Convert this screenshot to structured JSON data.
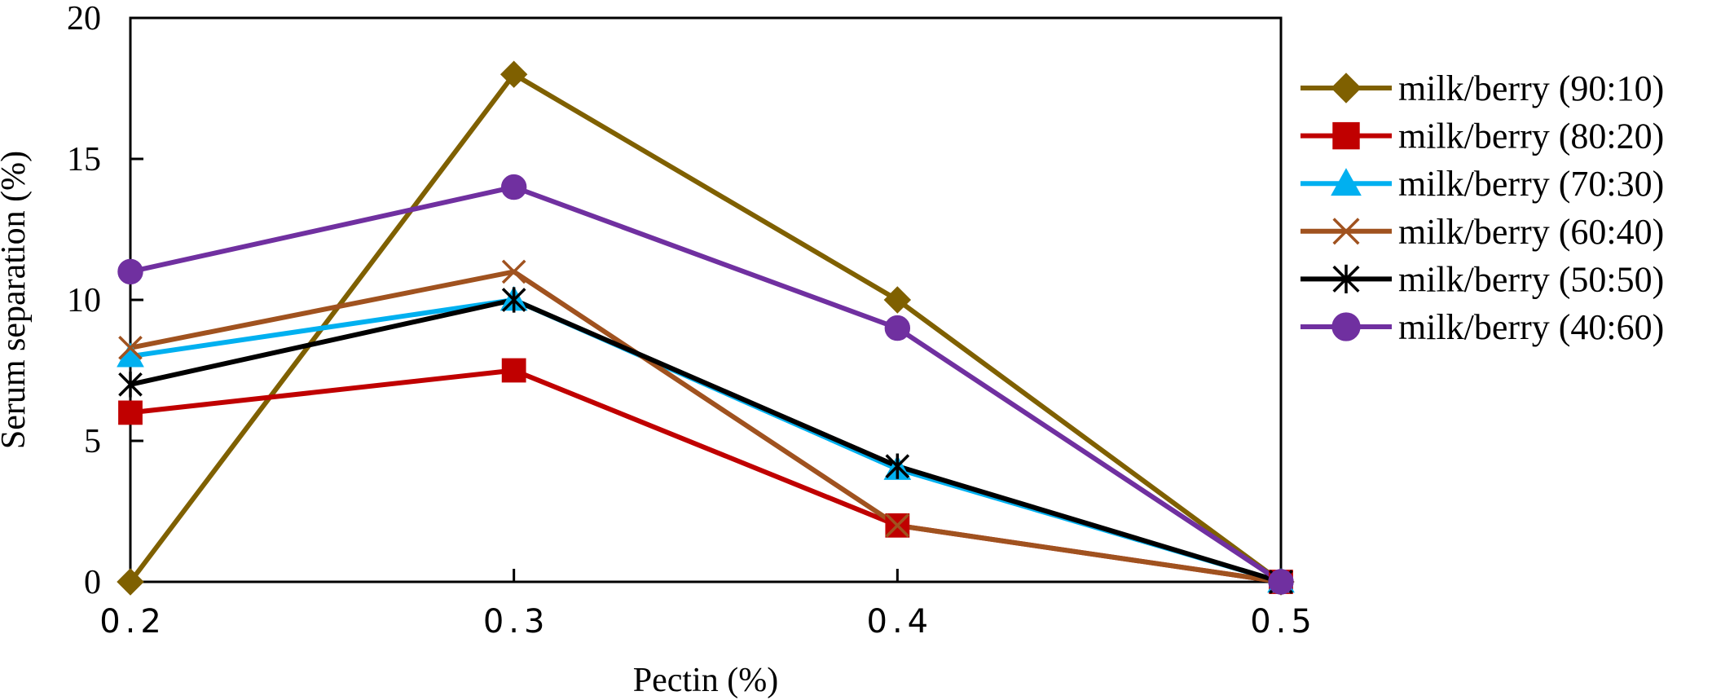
{
  "chart_data": {
    "type": "line",
    "title": "",
    "xlabel": "Pectin (%)",
    "ylabel": "Serum separation (%)",
    "x": [
      0.2,
      0.3,
      0.4,
      0.5
    ],
    "x_tick_labels": [
      "0.2",
      "0.3",
      "0.4",
      "0.5"
    ],
    "xlim": [
      0.2,
      0.5
    ],
    "ylim": [
      0,
      20
    ],
    "y_ticks": [
      0,
      5,
      10,
      15,
      20
    ],
    "grid": false,
    "legend_position": "right",
    "series": [
      {
        "name": "milk/berry (90:10)",
        "values": [
          0,
          18,
          10,
          0
        ],
        "color": "#7F6000",
        "marker": "diamond"
      },
      {
        "name": "milk/berry (80:20)",
        "values": [
          6,
          7.5,
          2,
          0
        ],
        "color": "#C00000",
        "marker": "square"
      },
      {
        "name": "milk/berry (70:30)",
        "values": [
          8,
          10,
          4,
          0
        ],
        "color": "#00B0F0",
        "marker": "triangle"
      },
      {
        "name": "milk/berry (60:40)",
        "values": [
          8.3,
          11,
          2,
          0
        ],
        "color": "#A0521F",
        "marker": "x"
      },
      {
        "name": "milk/berry (50:50)",
        "values": [
          7,
          10,
          4.1,
          0
        ],
        "color": "#000000",
        "marker": "asterisk"
      },
      {
        "name": "milk/berry (40:60)",
        "values": [
          11,
          14,
          9,
          0
        ],
        "color": "#7030A0",
        "marker": "circle"
      }
    ]
  }
}
